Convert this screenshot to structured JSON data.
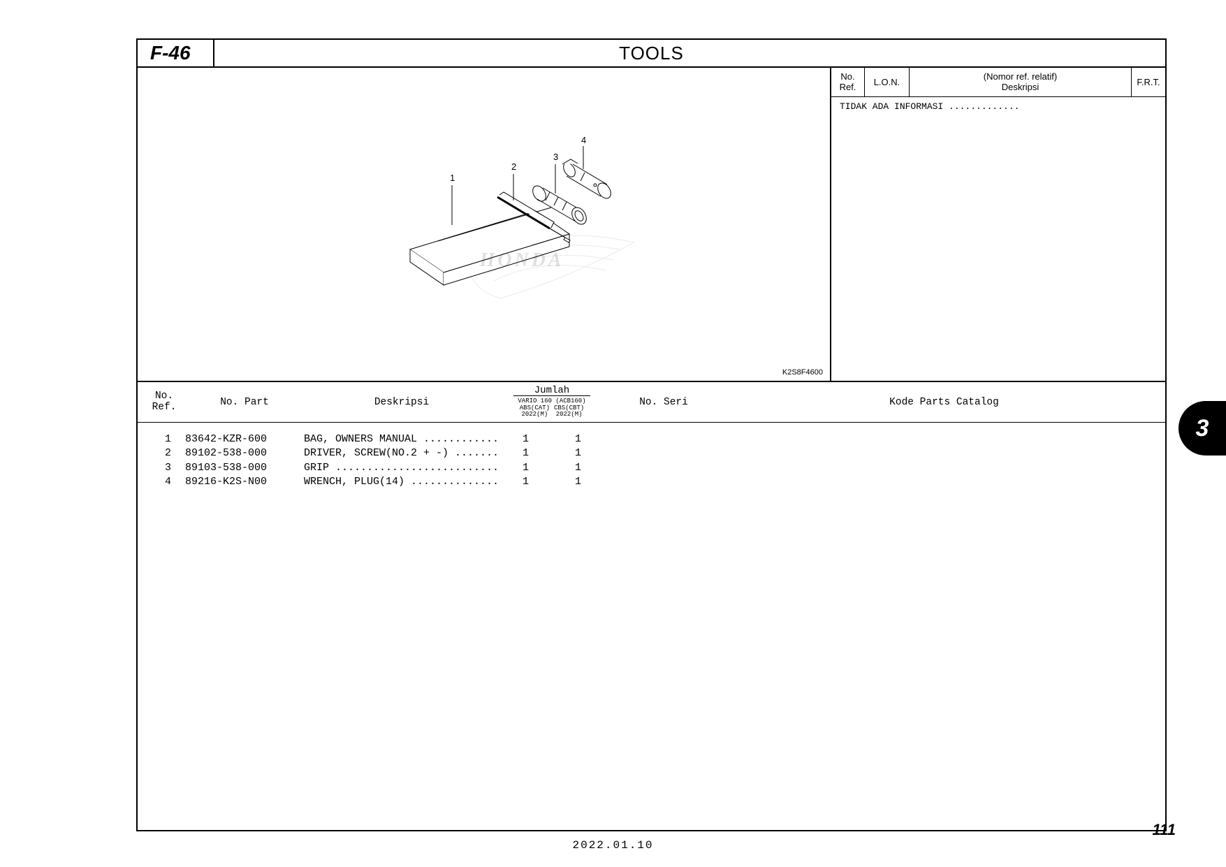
{
  "section_code": "F-46",
  "section_title": "TOOLS",
  "diagram_code": "K2S8F4600",
  "watermark": "HONDA",
  "side_panel": {
    "head": {
      "ref_top": "No.",
      "ref_bot": "Ref.",
      "lon": "L.O.N.",
      "desc_top": "(Nomor ref. relatif)",
      "desc_bot": "Deskripsi",
      "frt": "F.R.T."
    },
    "no_info": "TIDAK ADA INFORMASI ............."
  },
  "table_head": {
    "ref_top": "No.",
    "ref_bot": "Ref.",
    "part": "No. Part",
    "desc": "Deskripsi",
    "qty_top": "Jumlah",
    "qty_sub_model": "VARIO 160 (ACB160)",
    "qty_sub1_a": "ABS(CAT)",
    "qty_sub1_b": "2022(M)",
    "qty_sub2_a": "CBS(CBT)",
    "qty_sub2_b": "2022(M)",
    "seri": "No. Seri",
    "kpc": "Kode Parts Catalog"
  },
  "rows": [
    {
      "ref": "1",
      "part": "83642-KZR-600",
      "desc": "BAG, OWNERS MANUAL ............",
      "q1": "1",
      "q2": "1"
    },
    {
      "ref": "2",
      "part": "89102-538-000",
      "desc": "DRIVER, SCREW(NO.2 + -) .......",
      "q1": "1",
      "q2": "1"
    },
    {
      "ref": "3",
      "part": "89103-538-000",
      "desc": "GRIP ..........................",
      "q1": "1",
      "q2": "1"
    },
    {
      "ref": "4",
      "part": "89216-K2S-N00",
      "desc": "WRENCH, PLUG(14) ..............",
      "q1": "1",
      "q2": "1"
    }
  ],
  "chapter_tab": "3",
  "page_number": "111",
  "footer_date": "2022.01.10",
  "callouts": {
    "c1": "1",
    "c2": "2",
    "c3": "3",
    "c4": "4"
  }
}
